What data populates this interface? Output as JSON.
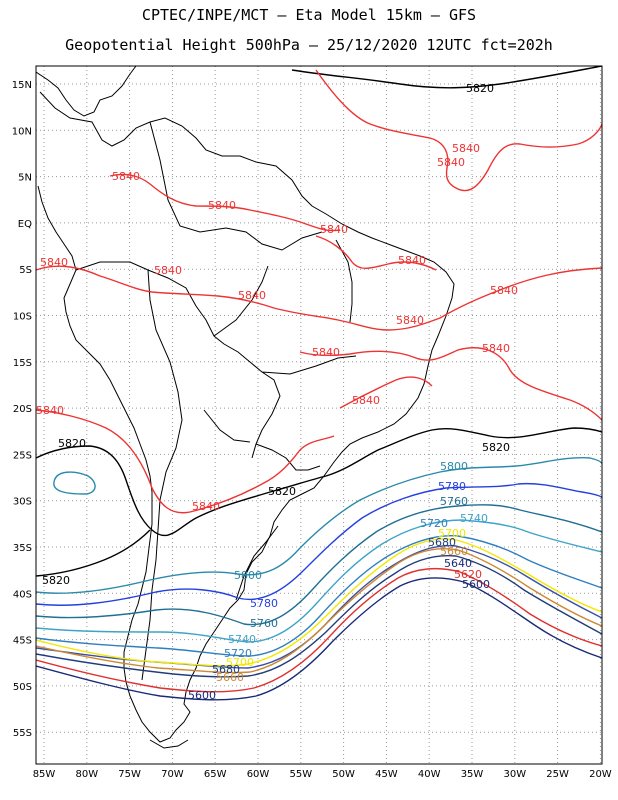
{
  "header": {
    "title_line1": "CPTEC/INPE/MCT –  Eta Model 15km – GFS",
    "title_line2": "Geopotential Height 500hPa – 25/12/2020 12UTC fct=202h"
  },
  "map": {
    "lat_labels": [
      "15N",
      "10N",
      "5N",
      "EQ",
      "5S",
      "10S",
      "15S",
      "20S",
      "25S",
      "30S",
      "35S",
      "40S",
      "45S",
      "50S",
      "55S"
    ],
    "lon_labels": [
      "85W",
      "80W",
      "75W",
      "70W",
      "65W",
      "60W",
      "55W",
      "50W",
      "45W",
      "40W",
      "35W",
      "30W",
      "25W",
      "20W"
    ],
    "colors": {
      "c5600": "#1a2a78",
      "c5620": "#e03030",
      "c5640": "#cc8833",
      "c5660": "#f2e800",
      "c5680": "#1f3d7a",
      "c5700": "#3a4fa8",
      "c5720": "#2f7fc0",
      "c5740": "#3ea3c8",
      "c5760": "#1f6f95",
      "c5780": "#2540e0",
      "c5800": "#2a8aaa",
      "c5820": "#000000",
      "c5840": "#ee3333",
      "land": "#000000",
      "grid": "#999999"
    },
    "contour_labels": {
      "l5820_a": "5820",
      "l5820_b": "5820",
      "l5820_c": "5820",
      "l5820_d": "5820",
      "l5820_e": "5820",
      "l5840_a": "5840",
      "l5840_b": "5840",
      "l5840_c": "5840",
      "l5840_d": "5840",
      "l5840_e": "5840",
      "l5840_f": "5840",
      "l5840_g": "5840",
      "l5840_h": "5840",
      "l5840_i": "5840",
      "l5840_j": "5840",
      "l5840_k": "5840",
      "l5840_l": "5840",
      "l5840_m": "5840",
      "l5840_n": "5840",
      "l5840_o": "5840",
      "l5800_a": "5800",
      "l5800_b": "5800",
      "l5780_a": "5780",
      "l5780_b": "5780",
      "l5760_a": "5760",
      "l5760_b": "5760",
      "l5740_a": "5740",
      "l5740_b": "5740",
      "l5720_a": "5720",
      "l5720_b": "5720",
      "l5700_a": "5700",
      "l5700_b": "5700",
      "l5680_a": "5680",
      "l5680_b": "5680",
      "l5660_a": "5660",
      "l5660_b": "5660",
      "l5640_a": "5640",
      "l5620_a": "5620",
      "l5600_a": "5600",
      "l5600_b": "5600"
    }
  }
}
